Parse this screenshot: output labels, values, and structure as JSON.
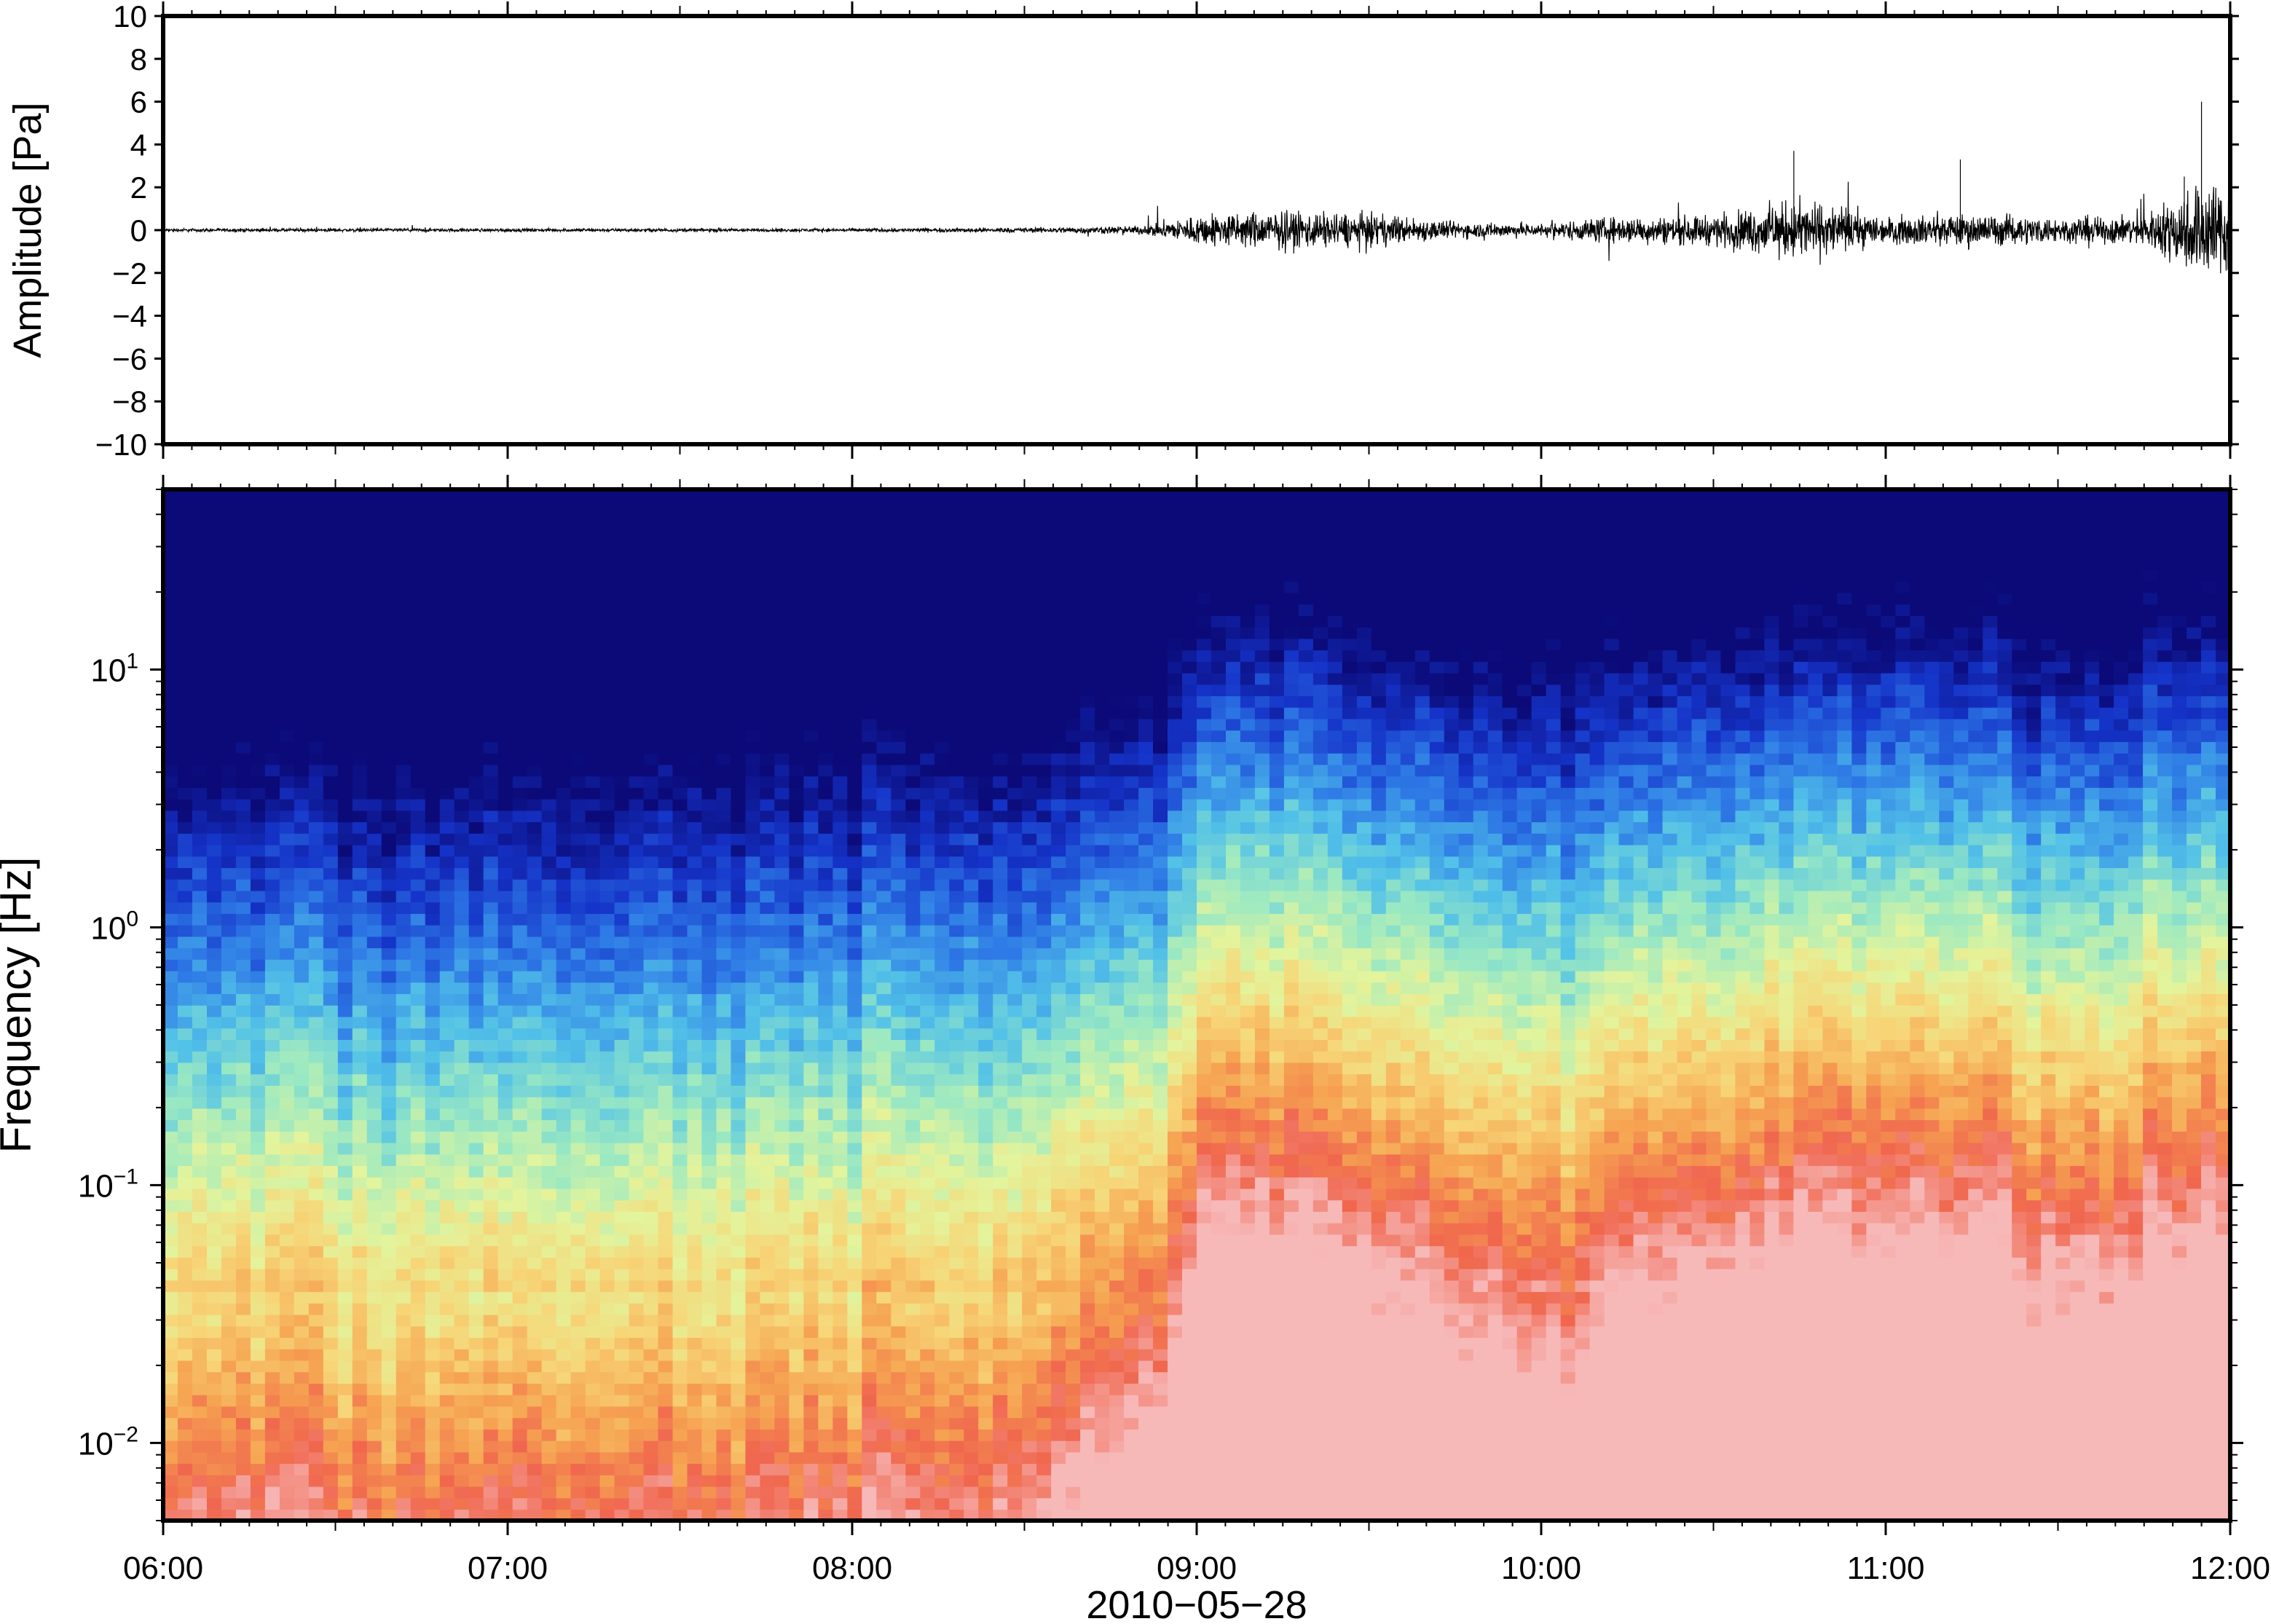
{
  "chart_data": [
    {
      "type": "line",
      "ylabel": "Amplitude [Pa]",
      "ylim": [
        -10,
        10
      ],
      "yticks": [
        "10",
        "8",
        "6",
        "4",
        "2",
        "0",
        "−2",
        "−4",
        "−6",
        "−8",
        "−10"
      ],
      "xlim": [
        "06:00",
        "12:00"
      ],
      "series": [
        {
          "x": [
            "06:00",
            "06:30",
            "07:00",
            "07:30",
            "08:00",
            "08:30",
            "08:50",
            "09:02",
            "09:15",
            "09:30",
            "09:45",
            "10:00",
            "10:10",
            "10:30",
            "10:45",
            "11:00",
            "11:15",
            "11:30",
            "11:45",
            "11:55"
          ],
          "envelope": [
            0.2,
            0.2,
            0.2,
            0.2,
            0.2,
            0.3,
            0.5,
            2.0,
            2.3,
            2.0,
            1.0,
            0.8,
            1.5,
            1.8,
            3.7,
            1.6,
            2.0,
            1.5,
            1.8,
            6.0
          ],
          "units": "Pa"
        }
      ],
      "grid": false
    },
    {
      "type": "heatmap",
      "ylabel": "Frequency [Hz]",
      "yscale": "log",
      "ylim_hz": [
        0.005,
        50
      ],
      "yticks": [
        {
          "base": "10",
          "exp": "1",
          "value": 10
        },
        {
          "base": "10",
          "exp": "0",
          "value": 1
        },
        {
          "base": "10",
          "exp": "−1",
          "value": 0.1
        },
        {
          "base": "10",
          "exp": "−2",
          "value": 0.01
        }
      ],
      "x_tick_labels": [
        "06:00",
        "07:00",
        "08:00",
        "09:00",
        "10:00",
        "11:00",
        "12:00"
      ],
      "xlabel": "2010−05−28",
      "colormap": [
        "#0b0a78",
        "#1533c8",
        "#2e7ae6",
        "#52c1e8",
        "#9be9c2",
        "#e3f49c",
        "#f7d577",
        "#f6a452",
        "#f0664e",
        "#f7b9b9"
      ],
      "energy_profile": {
        "times": [
          "06:00",
          "06:20",
          "06:40",
          "07:00",
          "07:20",
          "07:40",
          "08:00",
          "08:20",
          "08:40",
          "08:55",
          "09:02",
          "09:15",
          "09:30",
          "09:45",
          "10:00",
          "10:15",
          "10:30",
          "10:45",
          "11:00",
          "11:15",
          "11:30",
          "11:45",
          "12:00"
        ],
        "level": [
          0.0,
          0.05,
          0.0,
          0.05,
          0.0,
          0.0,
          0.05,
          0.1,
          0.25,
          0.45,
          1.0,
          0.95,
          0.85,
          0.6,
          0.5,
          0.8,
          0.7,
          1.0,
          0.85,
          0.9,
          0.75,
          0.85,
          0.95
        ]
      }
    }
  ]
}
